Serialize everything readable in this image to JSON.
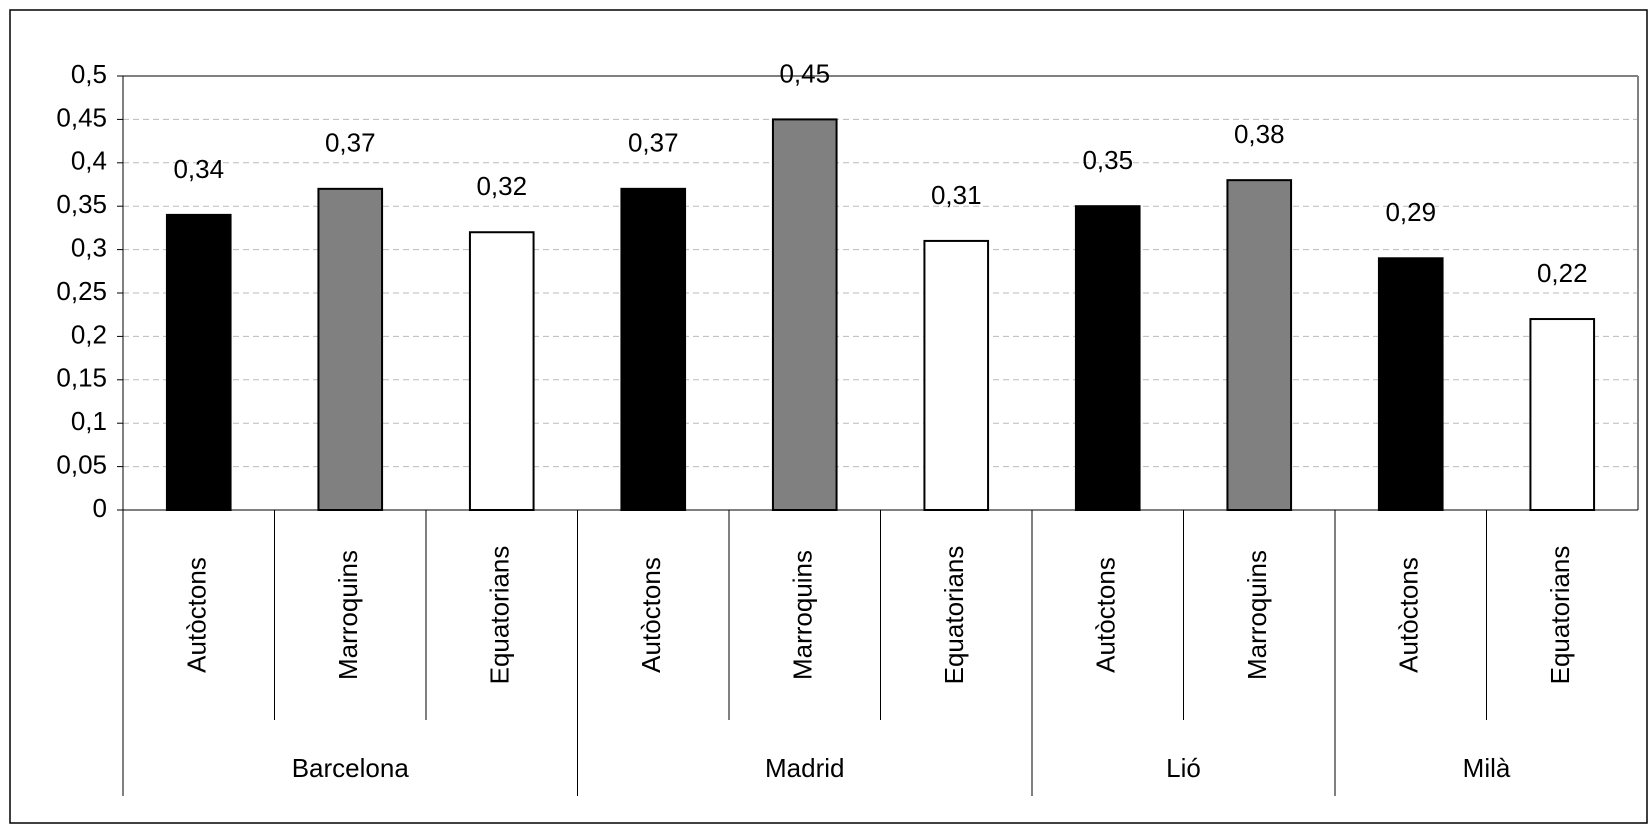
{
  "chart_data": {
    "type": "bar",
    "groups": [
      {
        "name": "Barcelona",
        "categories": [
          "Autòctons",
          "Marroquins",
          "Equatorians"
        ],
        "values": [
          0.34,
          0.37,
          0.32
        ],
        "value_labels": [
          "0,34",
          "0,37",
          "0,32"
        ],
        "colors": [
          "#000000",
          "#808080",
          "#ffffff"
        ]
      },
      {
        "name": "Madrid",
        "categories": [
          "Autòctons",
          "Marroquins",
          "Equatorians"
        ],
        "values": [
          0.37,
          0.45,
          0.31
        ],
        "value_labels": [
          "0,37",
          "0,45",
          "0,31"
        ],
        "colors": [
          "#000000",
          "#808080",
          "#ffffff"
        ]
      },
      {
        "name": "Lió",
        "categories": [
          "Autòctons",
          "Marroquins"
        ],
        "values": [
          0.35,
          0.38
        ],
        "value_labels": [
          "0,35",
          "0,38"
        ],
        "colors": [
          "#000000",
          "#808080"
        ]
      },
      {
        "name": "Milà",
        "categories": [
          "Autòctons",
          "Equatorians"
        ],
        "values": [
          0.29,
          0.22
        ],
        "value_labels": [
          "0,29",
          "0,22"
        ],
        "colors": [
          "#000000",
          "#ffffff"
        ]
      }
    ],
    "ylim": [
      0,
      0.5
    ],
    "yticks": [
      0,
      {
        "value": 0.05,
        "label": "0,05"
      },
      {
        "value": 0.1,
        "label": "0,1"
      },
      {
        "value": 0.15,
        "label": "0,15"
      },
      {
        "value": 0.2,
        "label": "0,2"
      },
      {
        "value": 0.25,
        "label": "0,25"
      },
      {
        "value": 0.3,
        "label": "0,3"
      },
      {
        "value": 0.35,
        "label": "0,35"
      },
      {
        "value": 0.4,
        "label": "0,4"
      },
      {
        "value": 0.45,
        "label": "0,45"
      },
      {
        "value": 0.5,
        "label": "0,5"
      }
    ],
    "grid": true
  }
}
